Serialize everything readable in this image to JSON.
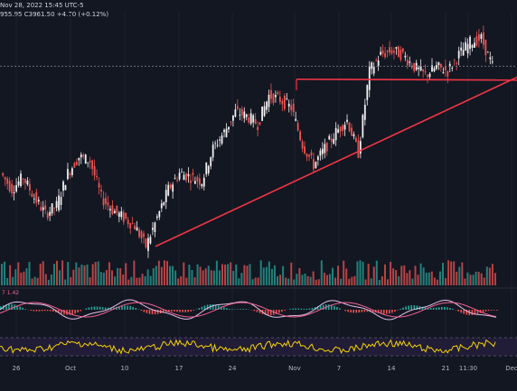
{
  "header": {
    "symbol_date": "Nov 28, 2022 15:45 UTC-5",
    "ohlc_fragment": "955.95",
    "close_fragment": "C3961.50",
    "change": "+4.70 (+0.12%)"
  },
  "colors": {
    "background": "#131722",
    "up": "#f0f0f0",
    "down": "#ef5350",
    "trendline": "#f23645",
    "grid": "#1e222d",
    "volume_up": "#26a69a",
    "volume_down": "#ef5350",
    "macd_line": "#e1bee7",
    "signal_line": "#f06292",
    "rsi_line": "#f5d300",
    "rsi_band": "#241d3a"
  },
  "chart_data": {
    "type": "candlestick",
    "x_ticks": [
      "26",
      "Oct",
      "10",
      "17",
      "24",
      "Nov",
      "7",
      "14",
      "21",
      "11:30",
      "Dec"
    ],
    "price_path": [
      [
        "26",
        3700
      ],
      [
        "27",
        3660
      ],
      [
        "28",
        3690
      ],
      [
        "29",
        3640
      ],
      [
        "30",
        3600
      ],
      [
        "Oct",
        3620
      ],
      [
        "4",
        3700
      ],
      [
        "5",
        3740
      ],
      [
        "6",
        3730
      ],
      [
        "7",
        3640
      ],
      [
        "10",
        3610
      ],
      [
        "11",
        3590
      ],
      [
        "12",
        3570
      ],
      [
        "13",
        3520
      ],
      [
        "14",
        3590
      ],
      [
        "17",
        3660
      ],
      [
        "18",
        3700
      ],
      [
        "19",
        3690
      ],
      [
        "20",
        3680
      ],
      [
        "21",
        3760
      ],
      [
        "24",
        3800
      ],
      [
        "25",
        3850
      ],
      [
        "26",
        3840
      ],
      [
        "27",
        3820
      ],
      [
        "28",
        3890
      ],
      [
        "31",
        3880
      ],
      [
        "Nov 1",
        3860
      ],
      [
        "2",
        3770
      ],
      [
        "3",
        3720
      ],
      [
        "4",
        3760
      ],
      [
        "7",
        3800
      ],
      [
        "8",
        3830
      ],
      [
        "9",
        3750
      ],
      [
        "10",
        3950
      ],
      [
        "11",
        3990
      ],
      [
        "14",
        4000
      ],
      [
        "15",
        3990
      ],
      [
        "16",
        3960
      ],
      [
        "17",
        3940
      ],
      [
        "18",
        3960
      ],
      [
        "21",
        3950
      ],
      [
        "22",
        3990
      ],
      [
        "23",
        4020
      ],
      [
        "25",
        4030
      ],
      [
        "28",
        3962
      ]
    ],
    "price_level_dotted": 3962,
    "annotations": {
      "horizontal_line": 3930,
      "trendline_from": [
        "Oct 13",
        3520
      ],
      "trendline_to": [
        "Dec",
        3935
      ]
    },
    "indicators": {
      "macd_label": "7",
      "macd_value": "1.42",
      "rsi": {
        "upper_band": 70,
        "lower_band": 30
      }
    }
  }
}
